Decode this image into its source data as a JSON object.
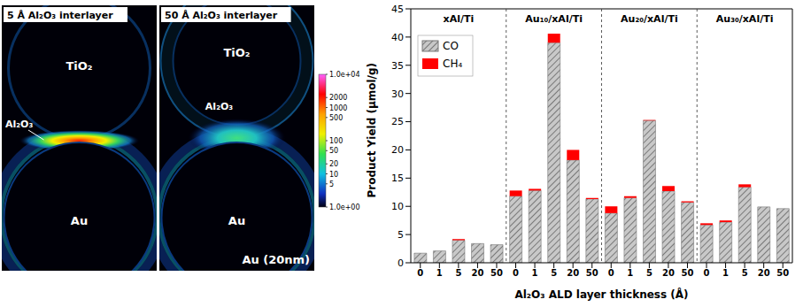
{
  "chart_data": [
    {
      "type": "field_map",
      "panels": [
        {
          "title": "5 Å Al₂O₃ interlayer",
          "labels": [
            "TiO₂",
            "Al₂O₃",
            "Au"
          ]
        },
        {
          "title": "50 Å Al₂O₃ interlayer",
          "labels": [
            "TiO₂",
            "Al₂O₃",
            "Au"
          ],
          "annotation": "Au (20nm)"
        }
      ],
      "colorbar": {
        "range": [
          1,
          10000
        ],
        "log": true,
        "ticks": [
          {
            "value": 10000,
            "label": "1.0e+04"
          },
          2000,
          1000,
          500,
          100,
          50,
          20,
          10,
          5,
          {
            "value": 1,
            "label": "1.0e+00"
          }
        ]
      }
    },
    {
      "type": "bar",
      "stacked": true,
      "groups": [
        "xAl/Ti",
        "Au₁₀/xAl/Ti",
        "Au₂₀/xAl/Ti",
        "Au₃₀/xAl/Ti"
      ],
      "categories": [
        "0",
        "1",
        "5",
        "20",
        "50",
        "0",
        "1",
        "5",
        "20",
        "50",
        "0",
        "1",
        "5",
        "20",
        "50",
        "0",
        "1",
        "5",
        "20",
        "50"
      ],
      "series": [
        {
          "name": "CO",
          "color": "#c8c8c8",
          "values": [
            1.7,
            2.1,
            4.0,
            3.4,
            3.2,
            11.8,
            12.8,
            39.0,
            18.2,
            11.3,
            8.8,
            11.5,
            25.2,
            12.7,
            10.7,
            6.7,
            7.2,
            13.4,
            9.9,
            9.6
          ]
        },
        {
          "name": "CH₄",
          "color": "#ff0000",
          "values": [
            0,
            0,
            0.2,
            0,
            0,
            1.0,
            0.3,
            1.6,
            1.8,
            0.2,
            1.2,
            0.3,
            0.1,
            0.9,
            0.2,
            0.3,
            0.3,
            0.5,
            0,
            0
          ]
        }
      ],
      "x_label": "Al₂O₃ ALD layer thickness (Å)",
      "y_label": "Product Yield (μmol/g)",
      "ylim": [
        0,
        45
      ],
      "yticks": [
        0,
        5,
        10,
        15,
        20,
        25,
        30,
        35,
        40,
        45
      ],
      "legend": "upper left",
      "grid": false
    }
  ]
}
